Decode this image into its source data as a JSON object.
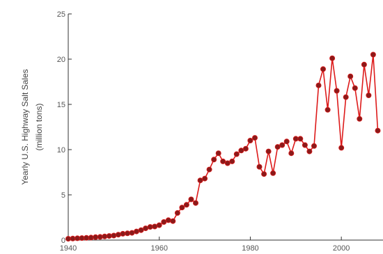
{
  "chart_data": {
    "type": "line",
    "title": "",
    "xlabel": "",
    "ylabel": "Yearly U.S. Highway Salt Sales",
    "ylabel_unit": "(million tons)",
    "xlim": [
      1940,
      2009
    ],
    "ylim": [
      0,
      25
    ],
    "x_ticks": [
      1940,
      1960,
      1980,
      2000
    ],
    "y_ticks": [
      0,
      5,
      10,
      15,
      20,
      25
    ],
    "grid": false,
    "legend": "none",
    "colors": {
      "line": "#dd1a1a",
      "marker_fill": "#8b1a1a",
      "axis": "#333333",
      "tick_text": "#555555"
    },
    "x": [
      1940,
      1941,
      1942,
      1943,
      1944,
      1945,
      1946,
      1947,
      1948,
      1949,
      1950,
      1951,
      1952,
      1953,
      1954,
      1955,
      1956,
      1957,
      1958,
      1959,
      1960,
      1961,
      1962,
      1963,
      1964,
      1965,
      1966,
      1967,
      1968,
      1969,
      1970,
      1971,
      1972,
      1973,
      1974,
      1975,
      1976,
      1977,
      1978,
      1979,
      1980,
      1981,
      1982,
      1983,
      1984,
      1985,
      1986,
      1987,
      1988,
      1989,
      1990,
      1991,
      1992,
      1993,
      1994,
      1995,
      1996,
      1997,
      1998,
      1999,
      2000,
      2001,
      2002,
      2003,
      2004,
      2005,
      2006,
      2007,
      2008
    ],
    "y": [
      0.15,
      0.17,
      0.2,
      0.22,
      0.25,
      0.28,
      0.32,
      0.35,
      0.4,
      0.45,
      0.5,
      0.6,
      0.7,
      0.75,
      0.8,
      0.95,
      1.1,
      1.3,
      1.45,
      1.5,
      1.65,
      2.0,
      2.2,
      2.1,
      3.0,
      3.6,
      3.9,
      4.5,
      4.1,
      6.6,
      6.8,
      7.8,
      8.9,
      9.6,
      8.7,
      8.5,
      8.7,
      9.5,
      9.9,
      10.1,
      11.0,
      11.3,
      8.1,
      7.3,
      9.8,
      7.4,
      10.3,
      10.5,
      10.9,
      9.6,
      11.2,
      11.2,
      10.5,
      9.8,
      10.4,
      17.1,
      18.9,
      14.4,
      20.1,
      16.5,
      10.2,
      15.8,
      18.1,
      16.8,
      13.4,
      19.4,
      16.0,
      20.5,
      12.1
    ]
  }
}
